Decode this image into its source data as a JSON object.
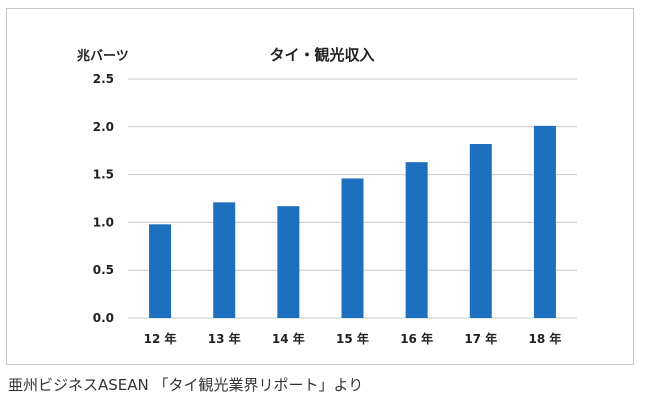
{
  "chart_data": {
    "type": "bar",
    "title": "タイ・観光収入",
    "ylabel": "兆バーツ",
    "xlabel": "",
    "categories": [
      "12 年",
      "13 年",
      "14 年",
      "15 年",
      "16 年",
      "17 年",
      "18 年"
    ],
    "values": [
      0.98,
      1.21,
      1.17,
      1.46,
      1.63,
      1.82,
      2.01
    ],
    "ylim": [
      0,
      2.5
    ],
    "yticks": [
      "0.0",
      "0.5",
      "1.0",
      "1.5",
      "2.0",
      "2.5"
    ],
    "grid": true,
    "colors": {
      "bar": "#1f6fbf",
      "grid": "#c8c8c8",
      "text": "#222222"
    }
  },
  "source": "亜州ビジネスASEAN 「タイ観光業界リポート」より"
}
